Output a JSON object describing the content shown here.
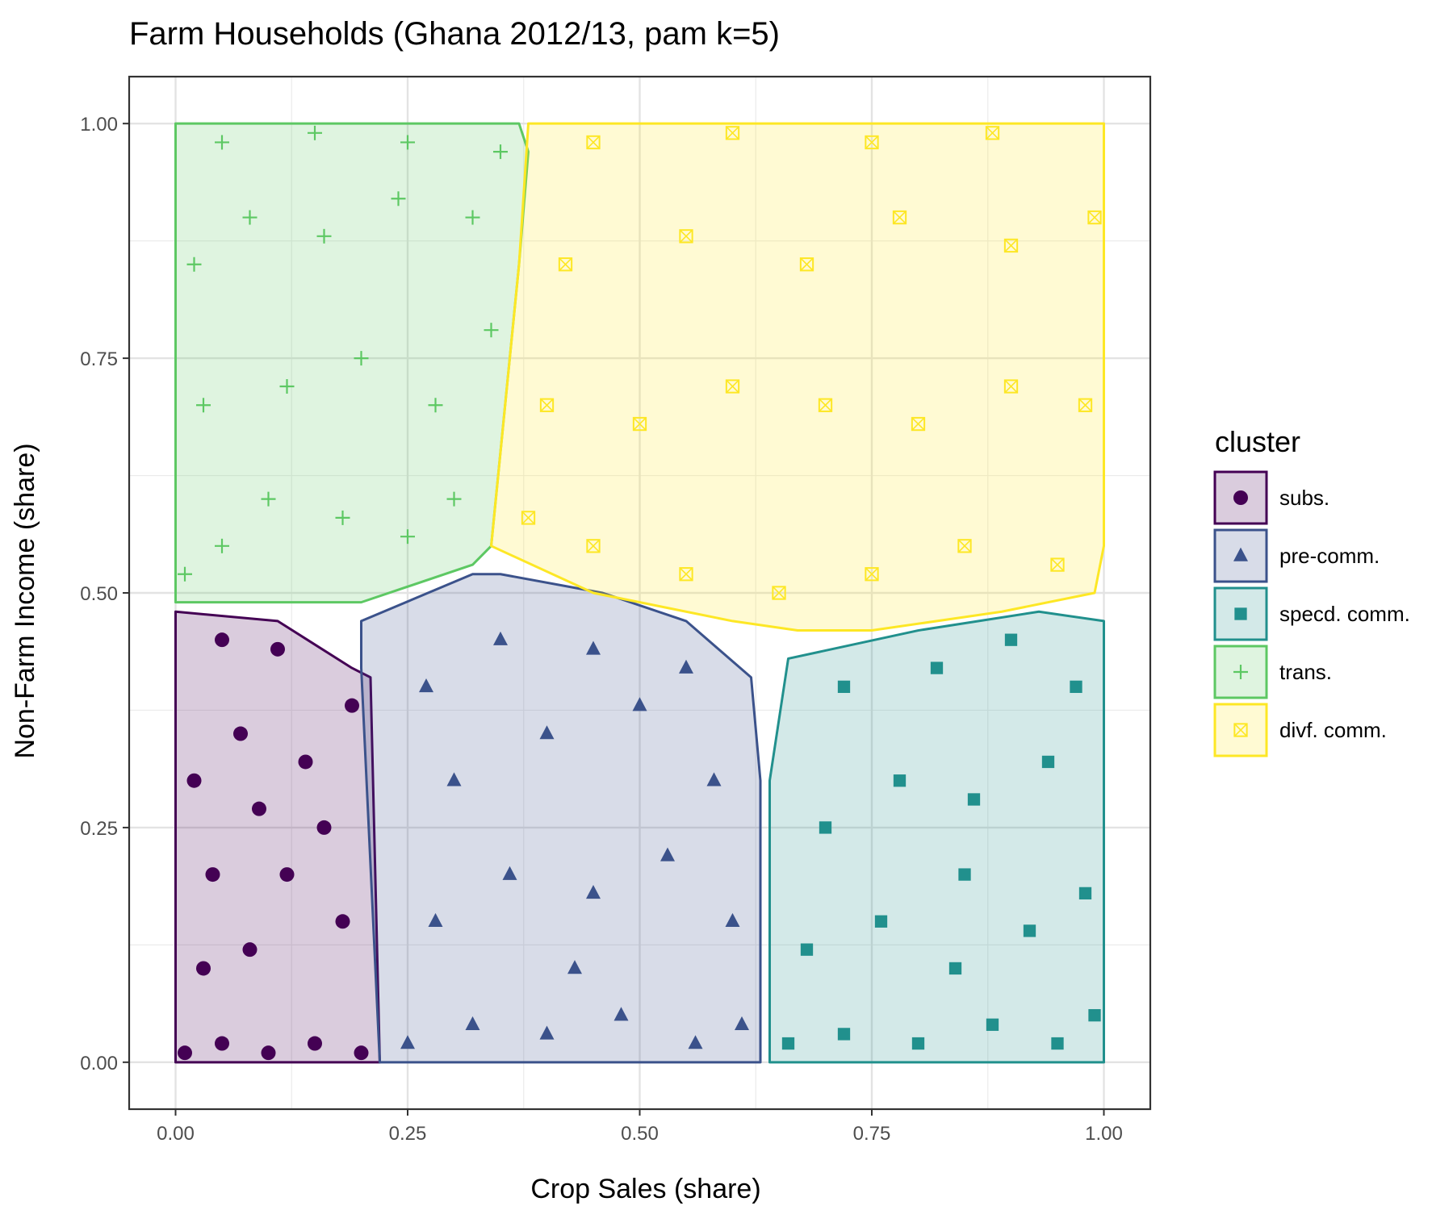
{
  "chart_data": {
    "type": "scatter",
    "title": "Farm Households (Ghana 2012/13, pam k=5)",
    "xlabel": "Crop Sales (share)",
    "ylabel": "Non-Farm Income (share)",
    "xlim": [
      -0.05,
      1.05
    ],
    "ylim": [
      -0.05,
      1.05
    ],
    "x_ticks": [
      "0.00",
      "0.25",
      "0.50",
      "0.75",
      "1.00"
    ],
    "y_ticks": [
      "0.00",
      "0.25",
      "0.50",
      "0.75",
      "1.00"
    ],
    "grid": true,
    "legend_title": "cluster",
    "legend_position": "right",
    "series": [
      {
        "name": "subs.",
        "marker": "circle",
        "color": "#440154",
        "hull": [
          [
            0,
            0
          ],
          [
            0.22,
            0
          ],
          [
            0.21,
            0.41
          ],
          [
            0.19,
            0.42
          ],
          [
            0.11,
            0.47
          ],
          [
            0,
            0.48
          ]
        ],
        "sample_points": [
          [
            0.01,
            0.01
          ],
          [
            0.05,
            0.02
          ],
          [
            0.1,
            0.01
          ],
          [
            0.15,
            0.02
          ],
          [
            0.2,
            0.01
          ],
          [
            0.03,
            0.1
          ],
          [
            0.08,
            0.12
          ],
          [
            0.12,
            0.2
          ],
          [
            0.18,
            0.15
          ],
          [
            0.02,
            0.3
          ],
          [
            0.07,
            0.35
          ],
          [
            0.14,
            0.32
          ],
          [
            0.19,
            0.38
          ],
          [
            0.05,
            0.45
          ],
          [
            0.11,
            0.44
          ],
          [
            0.16,
            0.25
          ],
          [
            0.04,
            0.2
          ],
          [
            0.09,
            0.27
          ]
        ]
      },
      {
        "name": "pre-comm.",
        "marker": "triangle",
        "color": "#3b528b",
        "hull": [
          [
            0.22,
            0
          ],
          [
            0.63,
            0
          ],
          [
            0.63,
            0.3
          ],
          [
            0.62,
            0.41
          ],
          [
            0.55,
            0.47
          ],
          [
            0.46,
            0.5
          ],
          [
            0.35,
            0.52
          ],
          [
            0.32,
            0.52
          ],
          [
            0.2,
            0.47
          ],
          [
            0.2,
            0.42
          ]
        ],
        "sample_points": [
          [
            0.25,
            0.02
          ],
          [
            0.32,
            0.04
          ],
          [
            0.4,
            0.03
          ],
          [
            0.48,
            0.05
          ],
          [
            0.56,
            0.02
          ],
          [
            0.61,
            0.04
          ],
          [
            0.28,
            0.15
          ],
          [
            0.36,
            0.2
          ],
          [
            0.45,
            0.18
          ],
          [
            0.53,
            0.22
          ],
          [
            0.6,
            0.15
          ],
          [
            0.3,
            0.3
          ],
          [
            0.4,
            0.35
          ],
          [
            0.5,
            0.38
          ],
          [
            0.58,
            0.3
          ],
          [
            0.35,
            0.45
          ],
          [
            0.45,
            0.44
          ],
          [
            0.55,
            0.42
          ],
          [
            0.27,
            0.4
          ],
          [
            0.43,
            0.1
          ]
        ]
      },
      {
        "name": "specd. comm.",
        "marker": "square",
        "color": "#21908d",
        "hull": [
          [
            0.64,
            0
          ],
          [
            1.0,
            0
          ],
          [
            1.0,
            0.47
          ],
          [
            0.93,
            0.48
          ],
          [
            0.8,
            0.46
          ],
          [
            0.66,
            0.43
          ],
          [
            0.64,
            0.3
          ]
        ],
        "sample_points": [
          [
            0.66,
            0.02
          ],
          [
            0.72,
            0.03
          ],
          [
            0.8,
            0.02
          ],
          [
            0.88,
            0.04
          ],
          [
            0.95,
            0.02
          ],
          [
            0.99,
            0.05
          ],
          [
            0.68,
            0.12
          ],
          [
            0.76,
            0.15
          ],
          [
            0.84,
            0.1
          ],
          [
            0.92,
            0.14
          ],
          [
            0.98,
            0.18
          ],
          [
            0.7,
            0.25
          ],
          [
            0.78,
            0.3
          ],
          [
            0.86,
            0.28
          ],
          [
            0.94,
            0.32
          ],
          [
            0.72,
            0.4
          ],
          [
            0.82,
            0.42
          ],
          [
            0.9,
            0.45
          ],
          [
            0.97,
            0.4
          ],
          [
            0.85,
            0.2
          ]
        ]
      },
      {
        "name": "trans.",
        "marker": "plus",
        "color": "#5dc863",
        "hull": [
          [
            0,
            0.49
          ],
          [
            0.2,
            0.49
          ],
          [
            0.32,
            0.53
          ],
          [
            0.34,
            0.55
          ],
          [
            0.37,
            0.85
          ],
          [
            0.38,
            0.97
          ],
          [
            0.37,
            1.0
          ],
          [
            0,
            1.0
          ]
        ],
        "sample_points": [
          [
            0.01,
            0.52
          ],
          [
            0.05,
            0.55
          ],
          [
            0.1,
            0.6
          ],
          [
            0.18,
            0.58
          ],
          [
            0.25,
            0.56
          ],
          [
            0.3,
            0.6
          ],
          [
            0.03,
            0.7
          ],
          [
            0.12,
            0.72
          ],
          [
            0.2,
            0.75
          ],
          [
            0.28,
            0.7
          ],
          [
            0.34,
            0.78
          ],
          [
            0.02,
            0.85
          ],
          [
            0.08,
            0.9
          ],
          [
            0.16,
            0.88
          ],
          [
            0.24,
            0.92
          ],
          [
            0.32,
            0.9
          ],
          [
            0.05,
            0.98
          ],
          [
            0.15,
            0.99
          ],
          [
            0.25,
            0.98
          ],
          [
            0.35,
            0.97
          ]
        ]
      },
      {
        "name": "divf. comm.",
        "marker": "square-x",
        "color": "#fde725",
        "hull": [
          [
            0.34,
            0.55
          ],
          [
            0.45,
            0.5
          ],
          [
            0.6,
            0.47
          ],
          [
            0.67,
            0.46
          ],
          [
            0.75,
            0.46
          ],
          [
            0.89,
            0.48
          ],
          [
            0.99,
            0.5
          ],
          [
            1.0,
            0.55
          ],
          [
            1.0,
            1.0
          ],
          [
            0.38,
            1.0
          ],
          [
            0.37,
            0.85
          ]
        ],
        "sample_points": [
          [
            0.38,
            0.58
          ],
          [
            0.45,
            0.55
          ],
          [
            0.55,
            0.52
          ],
          [
            0.65,
            0.5
          ],
          [
            0.75,
            0.52
          ],
          [
            0.85,
            0.55
          ],
          [
            0.95,
            0.53
          ],
          [
            0.4,
            0.7
          ],
          [
            0.5,
            0.68
          ],
          [
            0.6,
            0.72
          ],
          [
            0.7,
            0.7
          ],
          [
            0.8,
            0.68
          ],
          [
            0.9,
            0.72
          ],
          [
            0.98,
            0.7
          ],
          [
            0.42,
            0.85
          ],
          [
            0.55,
            0.88
          ],
          [
            0.68,
            0.85
          ],
          [
            0.78,
            0.9
          ],
          [
            0.9,
            0.87
          ],
          [
            0.99,
            0.9
          ],
          [
            0.45,
            0.98
          ],
          [
            0.6,
            0.99
          ],
          [
            0.75,
            0.98
          ],
          [
            0.88,
            0.99
          ]
        ]
      }
    ]
  }
}
